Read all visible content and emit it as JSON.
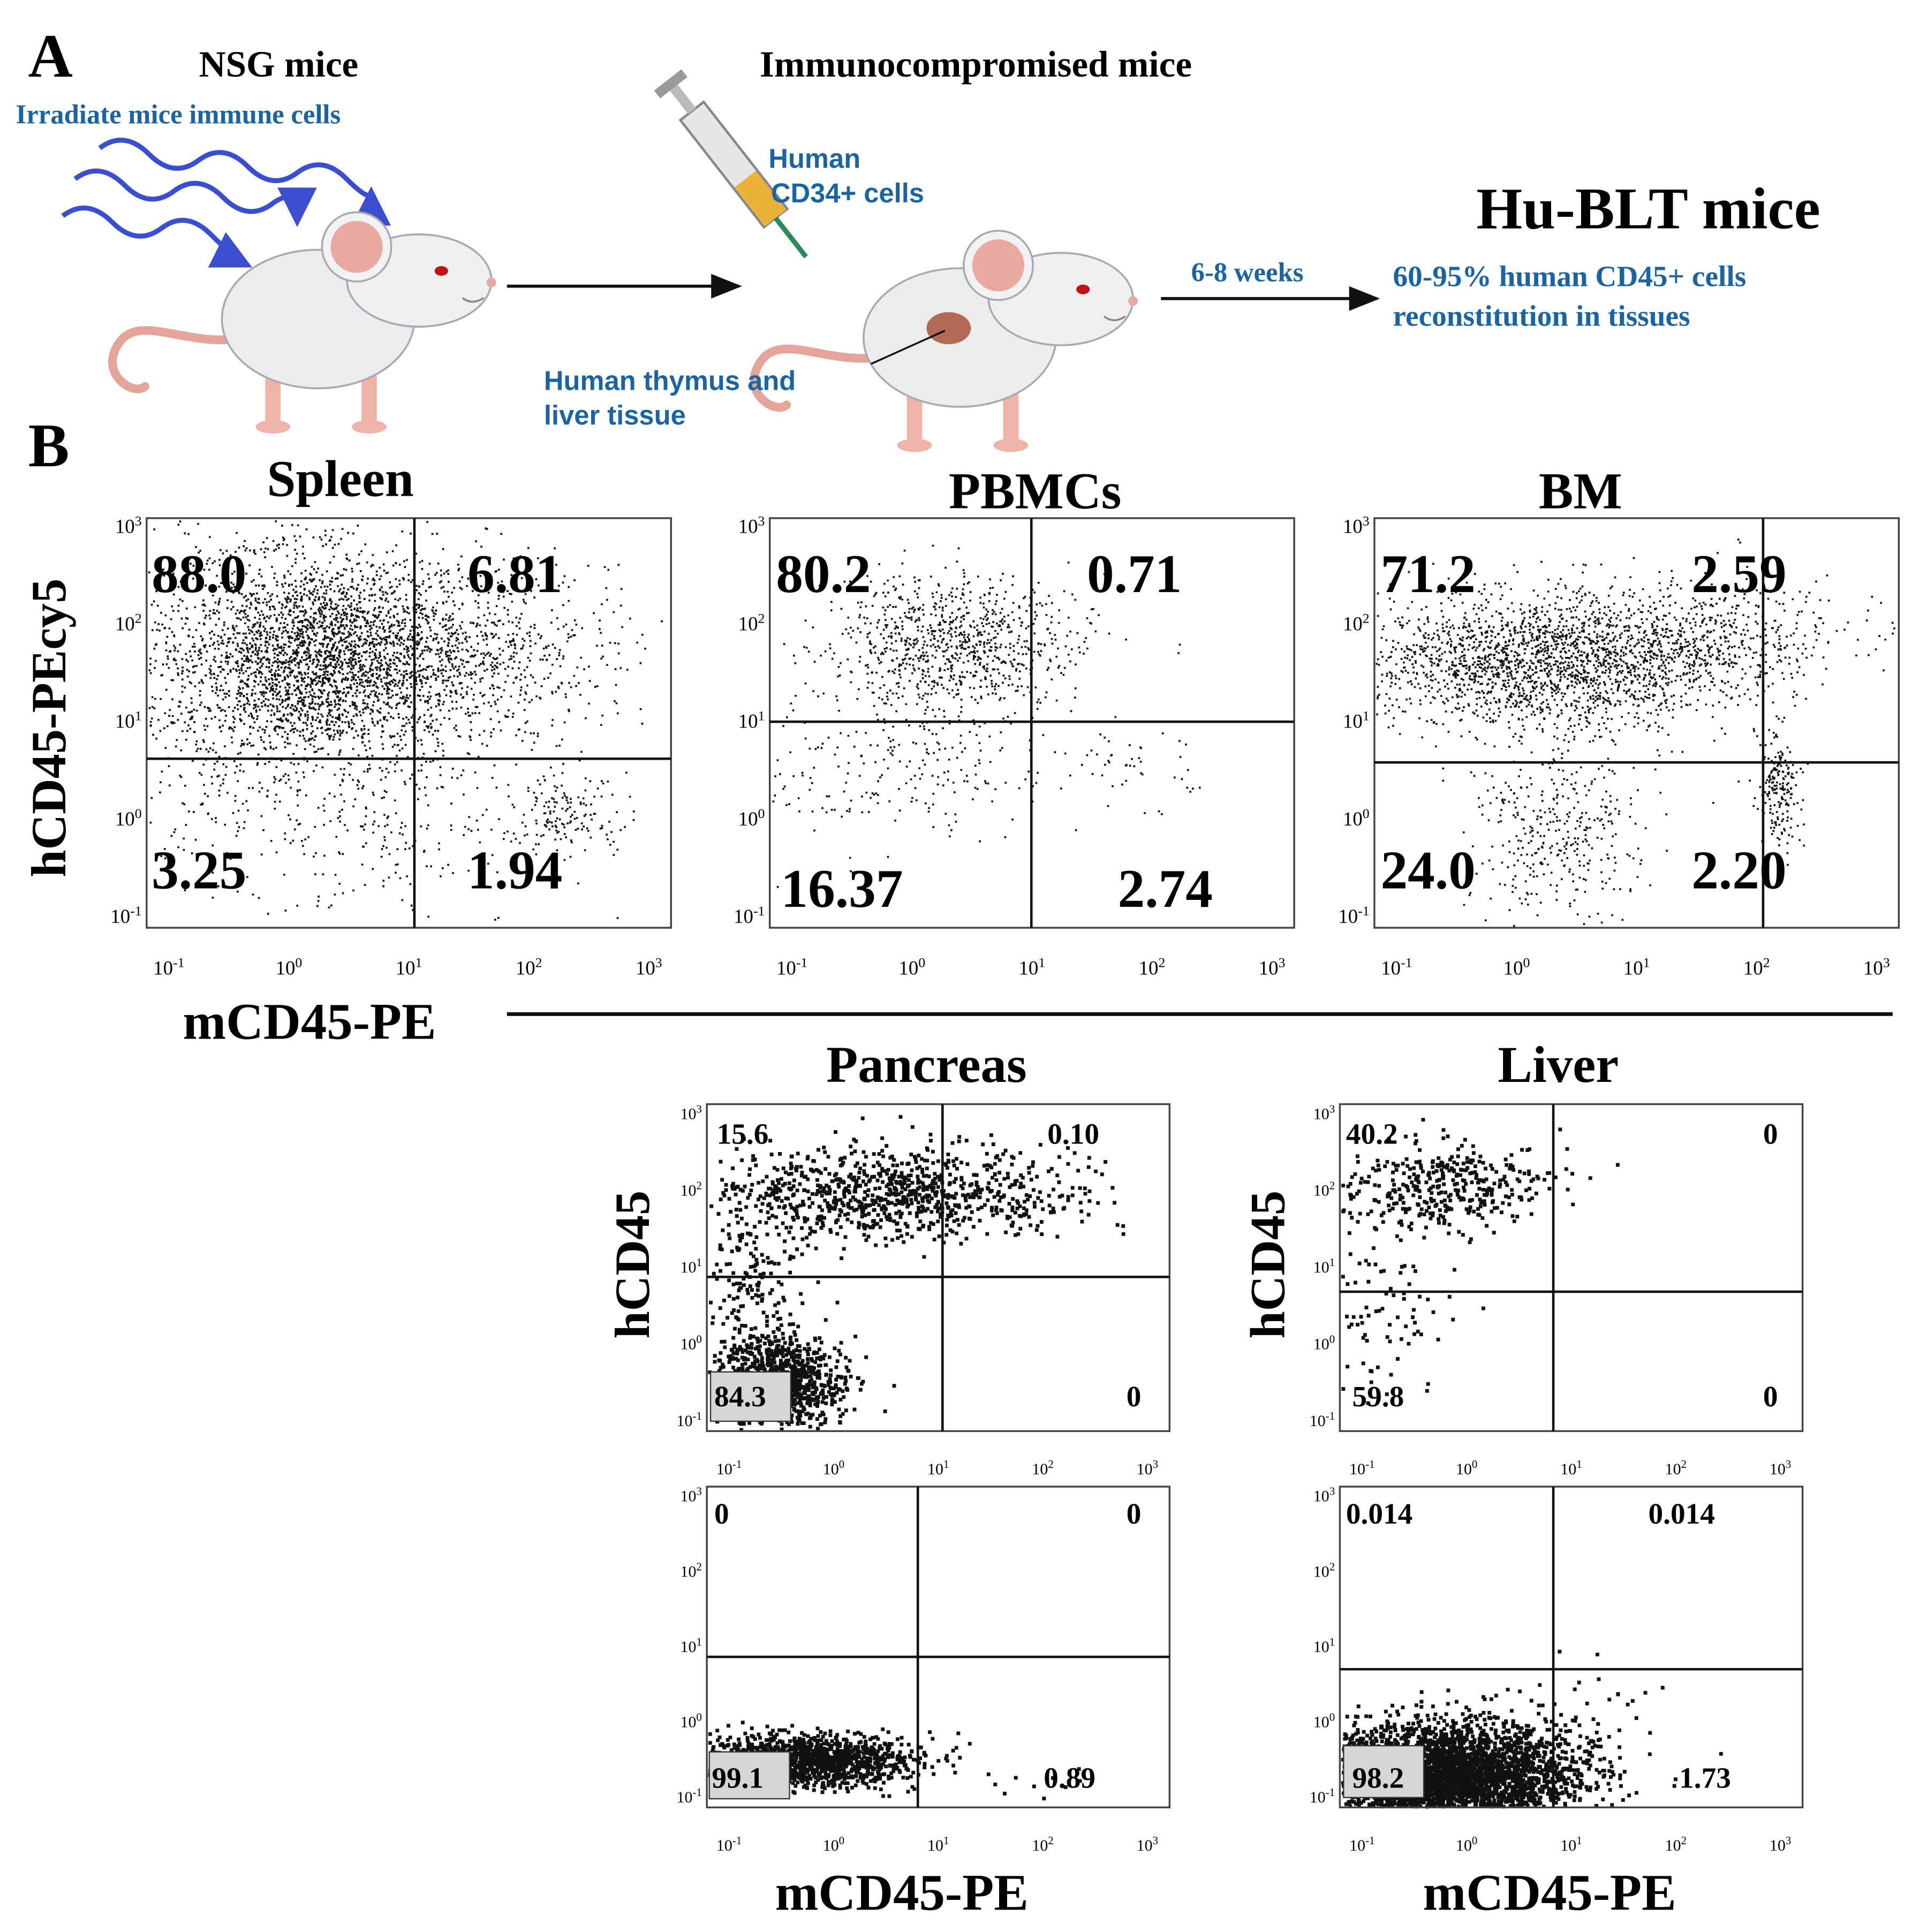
{
  "panel_a": {
    "label": "A",
    "step1": {
      "title": "NSG mice",
      "note": "Irradiate mice immune cells"
    },
    "step2": {
      "title": "Immunocompromised mice",
      "injection": [
        "Human",
        "CD34+ cells"
      ],
      "implant": [
        "Human thymus and",
        "liver tissue"
      ]
    },
    "arrow_label": "6-8 weeks",
    "result": {
      "title": "Hu-BLT mice",
      "note": [
        "60-95% human CD45+ cells",
        "reconstitution in tissues"
      ]
    }
  },
  "panel_b": {
    "label": "B",
    "y_label": "hCD45-PEcy5",
    "x_label": "mCD45-PE",
    "tick_base": "10",
    "tick_exponents": [
      "-1",
      "0",
      "1",
      "2",
      "3"
    ],
    "plots": [
      {
        "title": "Spleen",
        "quadrants": [
          "88.0",
          "6.81",
          "3.25",
          "1.94"
        ]
      },
      {
        "title": "PBMCs",
        "quadrants": [
          "80.2",
          "0.71",
          "16.37",
          "2.74"
        ]
      },
      {
        "title": "BM",
        "quadrants": [
          "71.2",
          "2.59",
          "24.0",
          "2.20"
        ]
      }
    ],
    "tissues": [
      {
        "title": "Pancreas",
        "y_label": "hCD45",
        "x_label": "mCD45-PE",
        "plots": [
          {
            "quadrants": [
              "15.6",
              "0.10",
              "84.3",
              "0"
            ]
          },
          {
            "quadrants": [
              "0",
              "0",
              "99.1",
              "0.89"
            ]
          }
        ]
      },
      {
        "title": "Liver",
        "y_label": "hCD45",
        "x_label": "mCD45-PE",
        "plots": [
          {
            "quadrants": [
              "40.2",
              "0",
              "59.8",
              "0"
            ]
          },
          {
            "quadrants": [
              "0.014",
              "0.014",
              "98.2",
              "1.73"
            ]
          }
        ]
      }
    ]
  }
}
